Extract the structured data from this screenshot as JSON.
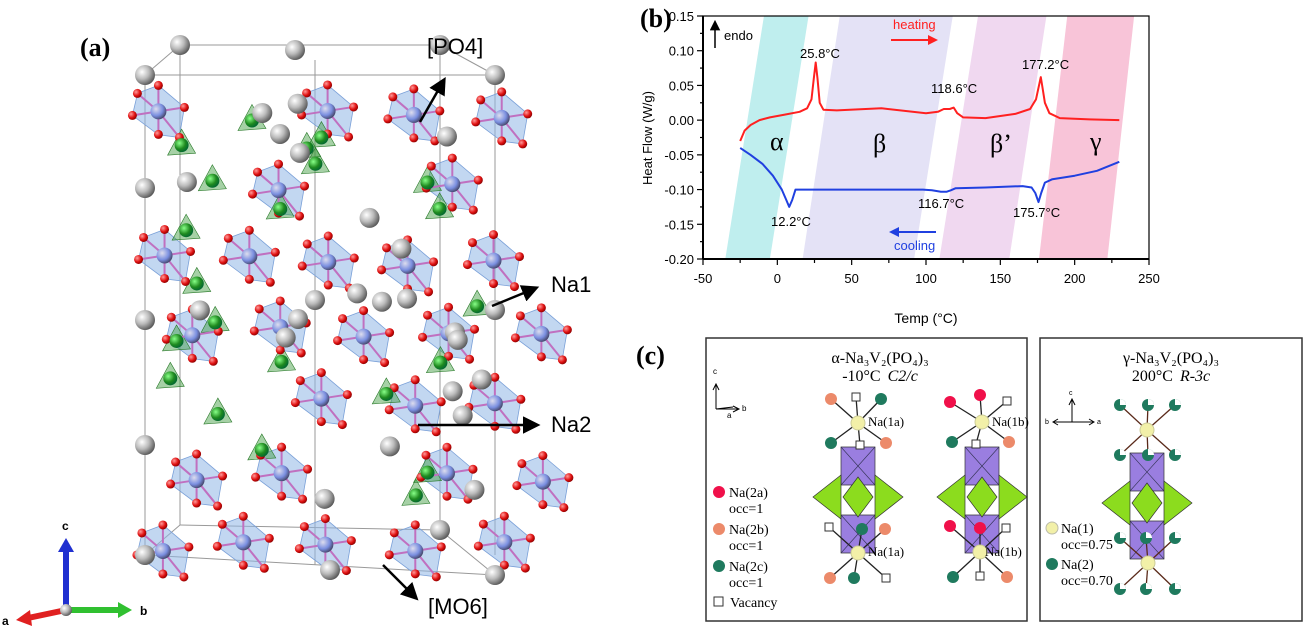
{
  "panel_a": {
    "label": "(a)",
    "labels": {
      "po4": "[PO4]",
      "na1": "Na1",
      "na2": "Na2",
      "mo6": "[MO6]"
    },
    "axes": {
      "a": "a",
      "b": "b",
      "c": "c"
    },
    "colors": {
      "octahedron": "#8fb6e6",
      "v_atom": "#6f8fe0",
      "p_atom": "#1f8a1f",
      "o_atom": "#e01010",
      "na_atom": "#a9a9a9"
    }
  },
  "panel_b": {
    "label": "(b)",
    "endo_label": "endo",
    "heating_label": "heating",
    "cooling_label": "cooling",
    "phases": [
      "α",
      "β",
      "β’",
      "γ"
    ],
    "peak_labels": {
      "h1": "25.8°C",
      "h2": "118.6°C",
      "h3": "177.2°C",
      "c1": "12.2°C",
      "c2": "116.7°C",
      "c3": "175.7°C"
    }
  },
  "chart_data": {
    "type": "line",
    "xlabel": "Temp (°C)",
    "ylabel": "Heat Flow (W/g)",
    "xlim": [
      -50,
      250
    ],
    "ylim": [
      -0.2,
      0.15
    ],
    "xticks": [
      "-50",
      "0",
      "50",
      "100",
      "150",
      "200",
      "250"
    ],
    "yticks": [
      "0.15",
      "0.10",
      "0.05",
      "0.00",
      "-0.05",
      "-0.10",
      "-0.15",
      "-0.20"
    ],
    "grid": false,
    "series": [
      {
        "name": "heating",
        "color": "#ff2020",
        "x": [
          -25,
          -22,
          -18,
          -12,
          -5,
          5,
          15,
          20,
          23,
          24.5,
          25.8,
          27,
          28.5,
          31,
          40,
          70,
          100,
          108,
          112,
          116,
          118.6,
          121,
          125,
          140,
          160,
          170,
          174,
          176,
          177.2,
          178.5,
          180,
          183,
          190,
          210,
          230
        ],
        "y": [
          -0.03,
          -0.015,
          -0.007,
          0.0,
          0.004,
          0.008,
          0.012,
          0.017,
          0.03,
          0.06,
          0.083,
          0.06,
          0.025,
          0.015,
          0.014,
          0.017,
          0.01,
          0.012,
          0.016,
          0.016,
          0.018,
          0.01,
          0.004,
          0.003,
          0.009,
          0.016,
          0.03,
          0.05,
          0.062,
          0.045,
          0.025,
          0.01,
          0.003,
          0.001,
          0.0
        ]
      },
      {
        "name": "cooling",
        "color": "#2040e0",
        "x": [
          -25,
          -18,
          -10,
          -3,
          3,
          6,
          8,
          10,
          12.2,
          16,
          60,
          98,
          104,
          110,
          114,
          116.7,
          120,
          140,
          165,
          171,
          173.5,
          175.7,
          177.5,
          180,
          185,
          200,
          215,
          230
        ],
        "y": [
          -0.04,
          -0.05,
          -0.063,
          -0.08,
          -0.1,
          -0.115,
          -0.125,
          -0.115,
          -0.1,
          -0.1,
          -0.1,
          -0.1,
          -0.101,
          -0.103,
          -0.103,
          -0.101,
          -0.098,
          -0.097,
          -0.095,
          -0.097,
          -0.105,
          -0.118,
          -0.105,
          -0.09,
          -0.085,
          -0.08,
          -0.073,
          -0.06
        ]
      }
    ],
    "phase_bands": [
      {
        "name": "α",
        "color": "#bfeeee",
        "x_bottom": [
          -35,
          -5
        ],
        "x_top": [
          -9,
          21
        ]
      },
      {
        "name": "β",
        "color": "#e4e2f6",
        "x_bottom": [
          17,
          92
        ],
        "x_top": [
          42,
          118
        ]
      },
      {
        "name": "β’",
        "color": "#f0d8f0",
        "x_bottom": [
          109,
          156
        ],
        "x_top": [
          135,
          181
        ]
      },
      {
        "name": "γ",
        "color": "#f8c4d8",
        "x_bottom": [
          176,
          222
        ],
        "x_top": [
          195,
          240
        ]
      }
    ],
    "annotations": [
      "25.8°C",
      "118.6°C",
      "177.2°C",
      "12.2°C",
      "116.7°C",
      "175.7°C",
      "endo",
      "heating",
      "cooling"
    ]
  },
  "panel_c": {
    "label": "(c)",
    "alpha": {
      "title": "α-Na₃V₂(PO₄)₃",
      "subtitle_temp": "-10°C",
      "subtitle_group": "C2/c",
      "sites": [
        "Na(1a)",
        "Na(1a)",
        "Na(1b)",
        "Na(1b)"
      ],
      "axes": {
        "c": "c",
        "b": "b",
        "a": "a"
      },
      "legend": [
        {
          "label": "Na(2a)",
          "occ": "occ=1",
          "color": "#f0104a"
        },
        {
          "label": "Na(2b)",
          "occ": "occ=1",
          "color": "#ec8a6a"
        },
        {
          "label": "Na(2c)",
          "occ": "occ=1",
          "color": "#1f7a5e"
        },
        {
          "label": "Vacancy",
          "color": "#ffffff"
        }
      ]
    },
    "gamma": {
      "title": "γ-Na₃V₂(PO₄)₃",
      "subtitle_temp": "200°C",
      "subtitle_group": "R-3c",
      "axes": {
        "c": "c",
        "b": "b",
        "a": "a"
      },
      "legend": [
        {
          "label": "Na(1)",
          "occ": "occ=0.75",
          "color": "#f2f0a8"
        },
        {
          "label": "Na(2)",
          "occ": "occ=0.70",
          "color": "#1f7a5e"
        }
      ]
    },
    "colors": {
      "vo6": "#9a7ee0",
      "po4": "#8cdc1e"
    }
  }
}
